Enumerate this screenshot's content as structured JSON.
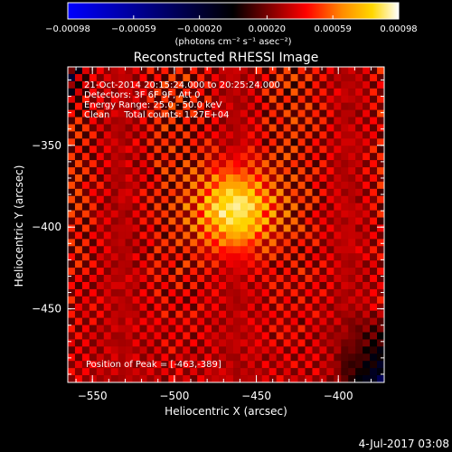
{
  "chart_data": {
    "type": "heatmap",
    "title": "Reconstructed RHESSI Image",
    "xlabel": "Heliocentric X (arcsec)",
    "ylabel": "Heliocentric Y (arcsec)",
    "xlim": [
      -565,
      -372
    ],
    "ylim": [
      -495,
      -302
    ],
    "x_ticks": [
      -550,
      -500,
      -450,
      -400
    ],
    "y_ticks": [
      -350,
      -400,
      -450
    ],
    "x_tick_labels": [
      "−550",
      "−500",
      "−450",
      "−400"
    ],
    "y_tick_labels": [
      "−350",
      "−400",
      "−450"
    ],
    "colorbar": {
      "range": [
        -0.00098,
        0.00098
      ],
      "tick_values": [
        -0.00098,
        -0.00059,
        -0.0002,
        0.0002,
        0.00059,
        0.00098
      ],
      "tick_labels": [
        "−0.00098",
        "−0.00059",
        "−0.00020",
        "0.00020",
        "0.00059",
        "0.00098"
      ],
      "unit": "(photons cm⁻² s⁻¹ asec⁻²)"
    },
    "peak": {
      "x": -463,
      "y": -389
    },
    "annotations": [
      "21-Oct-2014 20:15:24.000 to 20:25:24.000",
      "Detectors: 3F 6F 9F, Att 0",
      "Energy Range: 25.0 - 50.0 keV",
      "Clean     Total counts: 1.27E+04"
    ],
    "peak_label": "Position of Peak = [-463,-389]",
    "colormap": [
      "#0000ff",
      "#000000",
      "#8b0000",
      "#ff0000",
      "#ff8c00",
      "#ffd700",
      "#ffffff"
    ]
  },
  "footer": {
    "date": "4-Jul-2017 03:08"
  }
}
